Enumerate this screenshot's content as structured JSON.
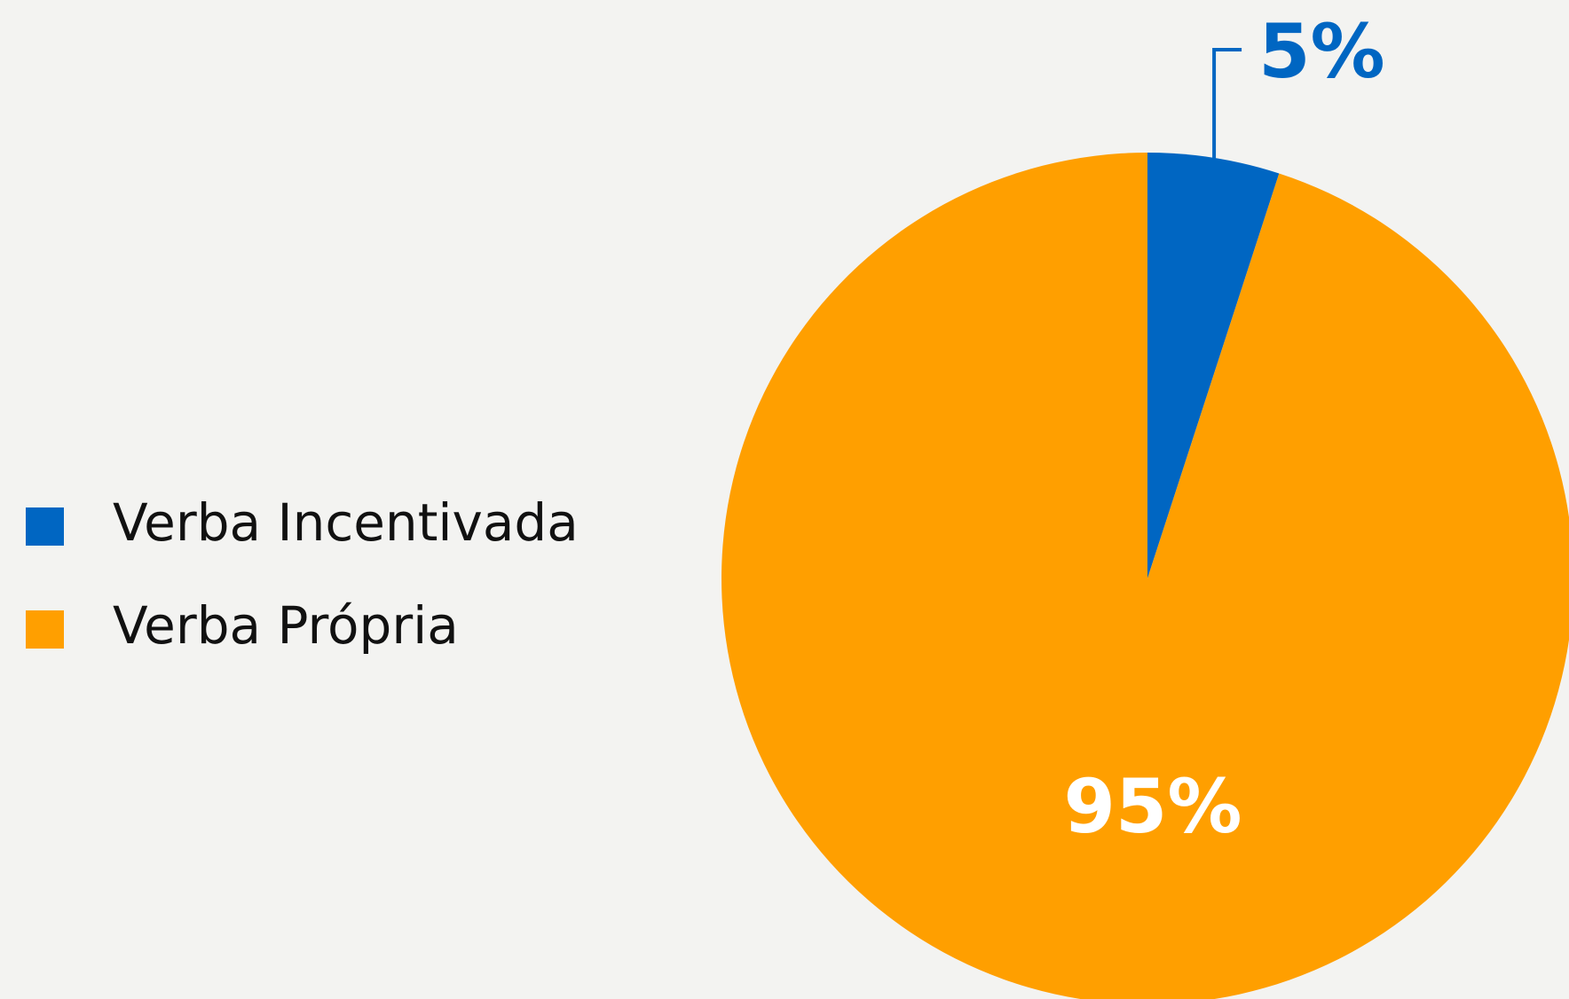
{
  "chart_data": {
    "type": "pie",
    "categories": [
      "Verba Incentivada",
      "Verba Própria"
    ],
    "values": [
      5,
      95
    ],
    "value_labels": [
      "5%",
      "95%"
    ],
    "colors": [
      "#0066c2",
      "#ff9f00"
    ],
    "legend": "left"
  }
}
